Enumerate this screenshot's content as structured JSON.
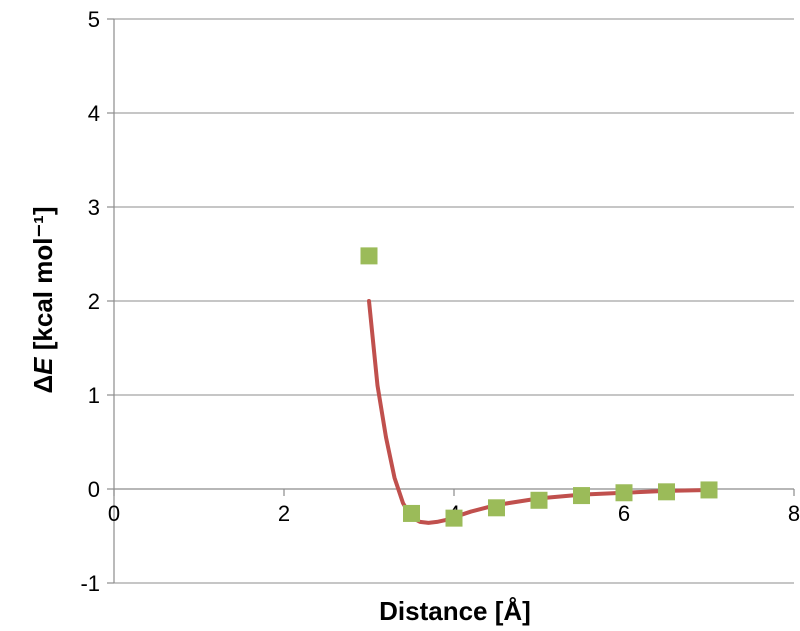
{
  "chart_data": {
    "type": "scatter",
    "title": "",
    "xlabel": "Distance [Å]",
    "ylabel_prefix": "Δ",
    "ylabel_var": "E",
    "ylabel_unit": " [kcal mol⁻¹]",
    "xlim": [
      0,
      8
    ],
    "ylim": [
      -1,
      5
    ],
    "xticks": [
      0,
      2,
      4,
      6,
      8
    ],
    "yticks": [
      -1,
      0,
      1,
      2,
      3,
      4,
      5
    ],
    "grid": "horizontal",
    "legend": "none",
    "series": [
      {
        "type": "scatter",
        "marker": "square",
        "color": "#9bbb59",
        "x": [
          3.0,
          3.5,
          4.0,
          4.5,
          5.0,
          5.5,
          6.0,
          6.5,
          7.0
        ],
        "y": [
          2.48,
          -0.26,
          -0.31,
          -0.2,
          -0.12,
          -0.07,
          -0.04,
          -0.03,
          -0.01
        ]
      },
      {
        "type": "line",
        "color": "#c0504d",
        "x": [
          3.0,
          3.1,
          3.2,
          3.3,
          3.4,
          3.5,
          3.6,
          3.7,
          3.8,
          3.9,
          4.0,
          4.2,
          4.5,
          5.0,
          5.5,
          6.0,
          6.5,
          7.0
        ],
        "y": [
          2.0,
          1.1,
          0.55,
          0.12,
          -0.15,
          -0.3,
          -0.35,
          -0.36,
          -0.35,
          -0.33,
          -0.3,
          -0.24,
          -0.17,
          -0.1,
          -0.06,
          -0.04,
          -0.02,
          -0.01
        ]
      }
    ]
  }
}
